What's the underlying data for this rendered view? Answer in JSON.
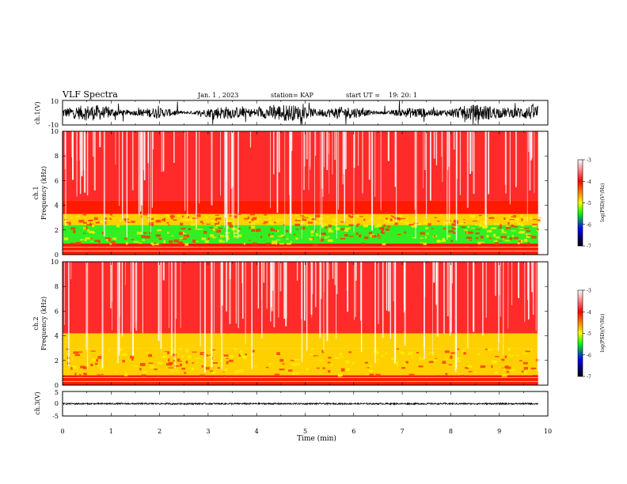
{
  "header": {
    "title": "VLF Spectra",
    "date": "Jan. 1 , 2023",
    "station": "station= KAP",
    "start": "start UT =",
    "start_time": "19: 20: 1"
  },
  "colors": {
    "waveform": "#000000",
    "background_red": "#ff0000",
    "mid_yellow": "#ffff00",
    "low_green": "#00ff00",
    "cbar_blue": "#0000ff",
    "cbar_black": "#000000",
    "cbar_top": "#ffffff"
  },
  "chart_data": [
    {
      "type": "line",
      "panel": "ch1-waveform",
      "ylabel": "ch.1(V)",
      "ylim": [
        -10,
        10
      ],
      "yticks": [
        "10",
        "-10"
      ],
      "xlim": [
        0,
        10
      ],
      "description_values": "noisy broadband waveform filling roughly -7 to +8 V"
    },
    {
      "type": "heatmap",
      "panel": "ch1-spectrogram",
      "ylabel": "ch.1\nFrequency (kHz)",
      "ylabel_lines": [
        "ch.1",
        "Frequency (kHz)"
      ],
      "ylim": [
        0,
        10
      ],
      "yticks": [
        "10",
        "8",
        "6",
        "4",
        "2",
        "0"
      ],
      "xlim": [
        0,
        10
      ],
      "data_extent_min": 9.8,
      "colorbar": {
        "label": "log(PSD)(V²/Hz)",
        "range": [
          -7,
          -3
        ],
        "ticks": [
          "-3",
          "-4",
          "-5",
          "-6",
          "-7"
        ]
      },
      "bands": [
        {
          "f_low": 0.0,
          "f_high": 0.9,
          "level": -3.9
        },
        {
          "f_low": 0.9,
          "f_high": 2.4,
          "level": -4.8
        },
        {
          "f_low": 2.4,
          "f_high": 3.3,
          "level": -4.6
        },
        {
          "f_low": 3.3,
          "f_high": 4.4,
          "level": -4.1
        },
        {
          "f_low": 4.4,
          "f_high": 10.0,
          "level": -3.2
        }
      ]
    },
    {
      "type": "heatmap",
      "panel": "ch2-spectrogram",
      "ylabel": "ch.2\nFrequency (kHz)",
      "ylabel_lines": [
        "ch.2",
        "Frequency (kHz)"
      ],
      "ylim": [
        0,
        10
      ],
      "yticks": [
        "10",
        "8",
        "6",
        "4",
        "2",
        "0"
      ],
      "xlim": [
        0,
        10
      ],
      "data_extent_min": 9.8,
      "colorbar": {
        "label": "log(PSD)(V²/Hz)",
        "range": [
          -7,
          -3
        ],
        "ticks": [
          "-3",
          "-4",
          "-5",
          "-6",
          "-7"
        ]
      },
      "bands": [
        {
          "f_low": 0.0,
          "f_high": 0.8,
          "level": -3.9
        },
        {
          "f_low": 0.8,
          "f_high": 3.0,
          "level": -4.6
        },
        {
          "f_low": 3.0,
          "f_high": 4.2,
          "level": -4.3
        },
        {
          "f_low": 4.2,
          "f_high": 10.0,
          "level": -3.1
        }
      ]
    },
    {
      "type": "line",
      "panel": "ch3-waveform",
      "ylabel": "ch.3(V)",
      "ylim": [
        -5,
        5
      ],
      "yticks": [
        "5",
        "0",
        "-5"
      ],
      "xlim": [
        0,
        10
      ],
      "xlabel": "Time (min)",
      "xticks": [
        "0",
        "1",
        "2",
        "3",
        "4",
        "5",
        "6",
        "7",
        "8",
        "9",
        "10"
      ],
      "level": 0.0,
      "amplitude": 0.3
    }
  ]
}
